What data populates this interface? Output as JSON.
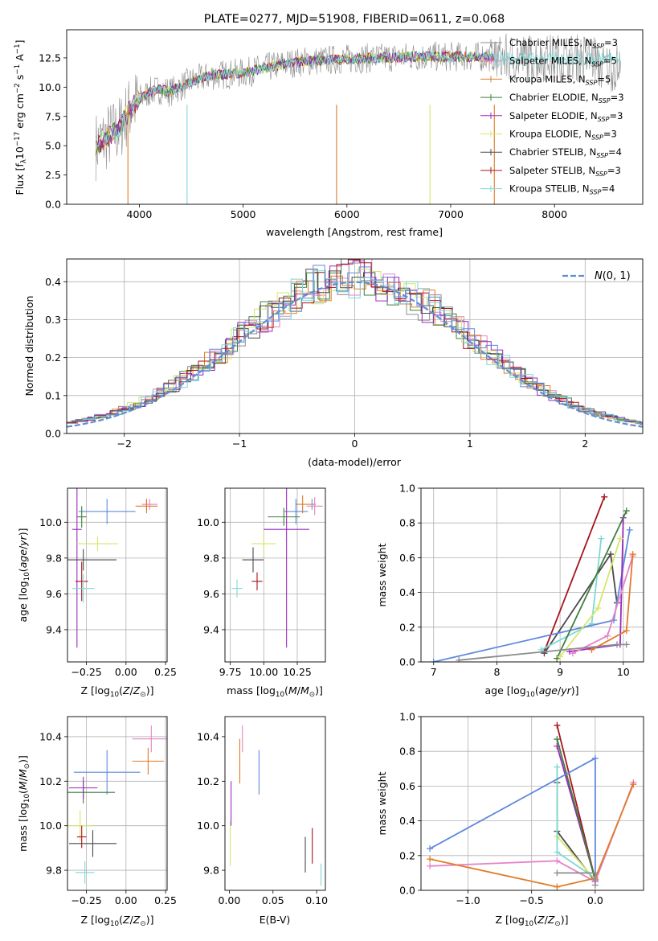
{
  "colors": {
    "chabrier_miles": "#8c8c8c",
    "salpeter_miles": "#e683c8",
    "kroupa_miles": "#e07b28",
    "chabrier_elodie": "#3f7f3f",
    "salpeter_elodie": "#9a2bbd",
    "kroupa_elodie": "#d6e66b",
    "chabrier_stelib": "#4a4a4a",
    "salpeter_stelib": "#a8141d",
    "kroupa_stelib": "#7fd8d8",
    "blue_series": "#5f88dd",
    "gaussian": "#5f8fd6",
    "grid": "#b0b0b0"
  },
  "chart_data": [
    {
      "id": "spectrum",
      "type": "line",
      "title": "PLATE=0277, MJD=51908, FIBERID=0611, z=0.068",
      "xlabel": "wavelength [Angstrom, rest frame]",
      "ylabel": "Flux [f_λ10^−17 erg cm^−2 s^−1 A^−1]",
      "xlim": [
        3300,
        8850
      ],
      "ylim": [
        0,
        14.9
      ],
      "xticks": [
        4000,
        5000,
        6000,
        7000,
        8000
      ],
      "yticks": [
        0.0,
        2.5,
        5.0,
        7.5,
        10.0,
        12.5
      ],
      "legend_position": "right",
      "legend": [
        {
          "name": "Chabrier MILES",
          "nssp": "3",
          "color_key": "chabrier_miles"
        },
        {
          "name": "Salpeter MILES",
          "nssp": "5",
          "color_key": "salpeter_miles"
        },
        {
          "name": "Kroupa MILES",
          "nssp": "5",
          "color_key": "kroupa_miles"
        },
        {
          "name": "Chabrier ELODIE",
          "nssp": "3",
          "color_key": "chabrier_elodie"
        },
        {
          "name": "Salpeter ELODIE",
          "nssp": "3",
          "color_key": "salpeter_elodie"
        },
        {
          "name": "Kroupa ELODIE",
          "nssp": "3",
          "color_key": "kroupa_elodie"
        },
        {
          "name": "Chabrier STELIB",
          "nssp": "4",
          "color_key": "chabrier_stelib"
        },
        {
          "name": "Salpeter STELIB",
          "nssp": "3",
          "color_key": "salpeter_stelib"
        },
        {
          "name": "Kroupa STELIB",
          "nssp": "4",
          "color_key": "kroupa_stelib"
        }
      ],
      "continuum_approx": [
        {
          "x": 3580,
          "y": 5.0
        },
        {
          "x": 3700,
          "y": 5.8
        },
        {
          "x": 3800,
          "y": 6.3
        },
        {
          "x": 3900,
          "y": 8.0
        },
        {
          "x": 4000,
          "y": 9.0
        },
        {
          "x": 4100,
          "y": 9.6
        },
        {
          "x": 4200,
          "y": 9.8
        },
        {
          "x": 4300,
          "y": 9.6
        },
        {
          "x": 4500,
          "y": 10.5
        },
        {
          "x": 4700,
          "y": 11.0
        },
        {
          "x": 5000,
          "y": 11.2
        },
        {
          "x": 5200,
          "y": 11.6
        },
        {
          "x": 5400,
          "y": 12.0
        },
        {
          "x": 5600,
          "y": 12.2
        },
        {
          "x": 5800,
          "y": 12.3
        },
        {
          "x": 6000,
          "y": 12.4
        },
        {
          "x": 6300,
          "y": 12.5
        },
        {
          "x": 6600,
          "y": 12.6
        },
        {
          "x": 6900,
          "y": 12.6
        },
        {
          "x": 7200,
          "y": 12.6
        },
        {
          "x": 7420,
          "y": 12.6
        }
      ]
    },
    {
      "id": "residuals",
      "type": "bar",
      "xlabel": "(data-model)/error",
      "ylabel": "Normed distribution",
      "xlim": [
        -2.5,
        2.5
      ],
      "ylim": [
        0,
        0.46
      ],
      "xticks": [
        -2,
        -1,
        0,
        1,
        2
      ],
      "yticks": [
        0.0,
        0.1,
        0.2,
        0.3,
        0.4
      ],
      "legend_position": "top-right",
      "legend": [
        {
          "name": "N(0,1)",
          "color_key": "gaussian"
        }
      ]
    },
    {
      "id": "z_age",
      "type": "scatter",
      "xlabel": "Z [log10(Z/Z⊙)]",
      "ylabel": "age [log10(age/yr)]",
      "xlim": [
        -0.37,
        0.26
      ],
      "ylim": [
        9.22,
        10.19
      ],
      "xticks": [
        -0.25,
        0.0,
        0.25
      ],
      "yticks": [
        9.4,
        9.6,
        9.8,
        10.0
      ],
      "points": [
        {
          "x": 0.13,
          "y": 10.1,
          "xerr": 0.03,
          "yerr": 0.03,
          "color_key": "chabrier_miles"
        },
        {
          "x": 0.15,
          "y": 10.1,
          "xerr": 0.05,
          "yerr": 0.03,
          "color_key": "salpeter_miles"
        },
        {
          "x": 0.13,
          "y": 10.09,
          "xerr": 0.07,
          "yerr": 0.04,
          "color_key": "kroupa_miles"
        },
        {
          "x": -0.12,
          "y": 10.06,
          "xerr": 0.18,
          "yerr": 0.07,
          "color_key": "blue_series"
        },
        {
          "x": -0.28,
          "y": 10.03,
          "xerr": 0.03,
          "yerr": 0.06,
          "color_key": "chabrier_elodie"
        },
        {
          "x": -0.31,
          "y": 9.96,
          "xerr": 0.03,
          "yerr": 0.66,
          "color_key": "salpeter_elodie"
        },
        {
          "x": -0.18,
          "y": 9.88,
          "xerr": 0.13,
          "yerr": 0.04,
          "color_key": "kroupa_elodie"
        },
        {
          "x": -0.27,
          "y": 9.79,
          "xerr": 0.21,
          "yerr": 0.06,
          "color_key": "chabrier_stelib"
        },
        {
          "x": -0.28,
          "y": 9.67,
          "xerr": 0.04,
          "yerr": 0.11,
          "color_key": "salpeter_stelib"
        },
        {
          "x": -0.27,
          "y": 9.63,
          "xerr": 0.07,
          "yerr": 0.08,
          "color_key": "kroupa_stelib"
        }
      ]
    },
    {
      "id": "mass_age",
      "type": "scatter",
      "xlabel": "mass [log10(M/M⊙)]",
      "ylabel": "",
      "xlim": [
        9.71,
        10.46
      ],
      "ylim": [
        9.22,
        10.19
      ],
      "xticks": [
        9.75,
        10.0,
        10.25
      ],
      "yticks": [
        9.4,
        9.6,
        9.8,
        10.0
      ],
      "points": [
        {
          "x": 10.36,
          "y": 10.1,
          "xerr": 0.03,
          "yerr": 0.03,
          "color_key": "chabrier_miles"
        },
        {
          "x": 10.38,
          "y": 10.09,
          "xerr": 0.06,
          "yerr": 0.05,
          "color_key": "salpeter_miles"
        },
        {
          "x": 10.29,
          "y": 10.1,
          "xerr": 0.05,
          "yerr": 0.05,
          "color_key": "kroupa_miles"
        },
        {
          "x": 10.24,
          "y": 10.06,
          "xerr": 0.09,
          "yerr": 0.07,
          "color_key": "blue_series"
        },
        {
          "x": 10.15,
          "y": 10.03,
          "xerr": 0.12,
          "yerr": 0.05,
          "color_key": "chabrier_elodie"
        },
        {
          "x": 10.17,
          "y": 9.96,
          "xerr": 0.17,
          "yerr": 0.66,
          "color_key": "salpeter_elodie"
        },
        {
          "x": 10.0,
          "y": 9.88,
          "xerr": 0.09,
          "yerr": 0.07,
          "color_key": "kroupa_elodie"
        },
        {
          "x": 9.92,
          "y": 9.79,
          "xerr": 0.08,
          "yerr": 0.07,
          "color_key": "chabrier_stelib"
        },
        {
          "x": 9.95,
          "y": 9.67,
          "xerr": 0.04,
          "yerr": 0.05,
          "color_key": "salpeter_stelib"
        },
        {
          "x": 9.8,
          "y": 9.63,
          "xerr": 0.04,
          "yerr": 0.05,
          "color_key": "kroupa_stelib"
        }
      ]
    },
    {
      "id": "age_weight",
      "type": "line",
      "xlabel": "age [log10(age/yr)]",
      "ylabel": "mass weight",
      "xlim": [
        6.8,
        10.32
      ],
      "ylim": [
        0,
        1.0
      ],
      "xticks": [
        7,
        8,
        9,
        10
      ],
      "yticks": [
        0.0,
        0.2,
        0.4,
        0.6,
        0.8,
        1.0
      ],
      "series": [
        {
          "color_key": "salpeter_stelib",
          "x": [
            8.75,
            9.7
          ],
          "y": [
            0.06,
            0.95
          ]
        },
        {
          "color_key": "chabrier_stelib",
          "x": [
            8.75,
            9.8,
            9.9
          ],
          "y": [
            0.05,
            0.62,
            0.34
          ]
        },
        {
          "color_key": "kroupa_stelib",
          "x": [
            8.7,
            9.5,
            9.65
          ],
          "y": [
            0.07,
            0.22,
            0.71
          ]
        },
        {
          "color_key": "blue_series",
          "x": [
            7.0,
            9.85,
            10.1
          ],
          "y": [
            0.0,
            0.24,
            0.76
          ]
        },
        {
          "color_key": "salpeter_elodie",
          "x": [
            9.15,
            9.95,
            10.0
          ],
          "y": [
            0.06,
            0.1,
            0.83
          ]
        },
        {
          "color_key": "chabrier_elodie",
          "x": [
            8.95,
            10.05
          ],
          "y": [
            0.02,
            0.87
          ]
        },
        {
          "color_key": "kroupa_elodie",
          "x": [
            9.0,
            9.6,
            9.95
          ],
          "y": [
            0.03,
            0.31,
            0.71
          ]
        },
        {
          "color_key": "salpeter_miles",
          "x": [
            9.2,
            9.75,
            10.15
          ],
          "y": [
            0.05,
            0.15,
            0.61
          ]
        },
        {
          "color_key": "kroupa_miles",
          "x": [
            9.5,
            10.05,
            10.15
          ],
          "y": [
            0.07,
            0.18,
            0.62
          ]
        },
        {
          "color_key": "chabrier_miles",
          "x": [
            7.4,
            9.9,
            10.05
          ],
          "y": [
            0.01,
            0.1,
            0.1
          ]
        }
      ]
    },
    {
      "id": "z_mass",
      "type": "scatter",
      "xlabel": "Z [log10(Z/Z⊙)]",
      "ylabel": "mass [log10(M/M⊙)]",
      "xlim": [
        -0.37,
        0.26
      ],
      "ylim": [
        9.71,
        10.49
      ],
      "xticks": [
        -0.25,
        0.0,
        0.25
      ],
      "yticks": [
        9.8,
        10.0,
        10.2,
        10.4
      ],
      "points": [
        {
          "x": 0.16,
          "y": 10.39,
          "xerr": 0.12,
          "yerr": 0.06,
          "color_key": "salpeter_miles"
        },
        {
          "x": 0.14,
          "y": 10.29,
          "xerr": 0.1,
          "yerr": 0.06,
          "color_key": "kroupa_miles"
        },
        {
          "x": -0.12,
          "y": 10.24,
          "xerr": 0.21,
          "yerr": 0.1,
          "color_key": "blue_series"
        },
        {
          "x": -0.27,
          "y": 10.15,
          "xerr": 0.2,
          "yerr": 0.05,
          "color_key": "chabrier_elodie"
        },
        {
          "x": -0.27,
          "y": 10.17,
          "xerr": 0.09,
          "yerr": 0.05,
          "color_key": "salpeter_elodie"
        },
        {
          "x": -0.29,
          "y": 10.0,
          "xerr": 0.08,
          "yerr": 0.07,
          "color_key": "kroupa_elodie"
        },
        {
          "x": -0.21,
          "y": 9.92,
          "xerr": 0.15,
          "yerr": 0.06,
          "color_key": "chabrier_stelib"
        },
        {
          "x": -0.28,
          "y": 9.95,
          "xerr": 0.03,
          "yerr": 0.05,
          "color_key": "salpeter_stelib"
        },
        {
          "x": -0.26,
          "y": 9.79,
          "xerr": 0.06,
          "yerr": 0.05,
          "color_key": "kroupa_stelib"
        }
      ]
    },
    {
      "id": "ebv_mass",
      "type": "scatter",
      "xlabel": "E(B-V)",
      "ylabel": "",
      "xlim": [
        -0.005,
        0.11
      ],
      "ylim": [
        9.71,
        10.49
      ],
      "xticks": [
        0.0,
        0.05,
        0.1
      ],
      "yticks": [
        9.8,
        10.0,
        10.2,
        10.4
      ],
      "points": [
        {
          "x": 0.015,
          "y": 10.39,
          "yerr": 0.06,
          "color_key": "salpeter_miles"
        },
        {
          "x": 0.012,
          "y": 10.29,
          "yerr": 0.1,
          "color_key": "kroupa_miles"
        },
        {
          "x": 0.034,
          "y": 10.24,
          "yerr": 0.1,
          "color_key": "blue_series"
        },
        {
          "x": 0.002,
          "y": 10.1,
          "yerr": 0.1,
          "color_key": "salpeter_elodie"
        },
        {
          "x": 0.001,
          "y": 9.92,
          "yerr": 0.1,
          "color_key": "kroupa_elodie"
        },
        {
          "x": 0.087,
          "y": 9.87,
          "yerr": 0.08,
          "color_key": "chabrier_stelib"
        },
        {
          "x": 0.095,
          "y": 9.91,
          "yerr": 0.08,
          "color_key": "salpeter_stelib"
        },
        {
          "x": 0.105,
          "y": 9.78,
          "yerr": 0.05,
          "color_key": "kroupa_stelib"
        }
      ]
    },
    {
      "id": "z_weight",
      "type": "line",
      "xlabel": "Z [log10(Z/Z⊙)]",
      "ylabel": "mass weight",
      "xlim": [
        -1.37,
        0.38
      ],
      "ylim": [
        0,
        1.0
      ],
      "xticks": [
        -1.0,
        -0.5,
        0.0
      ],
      "yticks": [
        0.0,
        0.2,
        0.4,
        0.6,
        0.8,
        1.0
      ],
      "series": [
        {
          "color_key": "salpeter_stelib",
          "x": [
            -0.3,
            0.0
          ],
          "y": [
            0.95,
            0.06
          ]
        },
        {
          "color_key": "salpeter_elodie",
          "x": [
            -0.3,
            0.0
          ],
          "y": [
            0.83,
            0.06
          ]
        },
        {
          "color_key": "chabrier_elodie",
          "x": [
            -0.3,
            0.0
          ],
          "y": [
            0.87,
            0.06
          ]
        },
        {
          "color_key": "chabrier_stelib",
          "x": [
            -0.3,
            -0.3,
            0.0
          ],
          "y": [
            0.62,
            0.34,
            0.05
          ]
        },
        {
          "color_key": "kroupa_elodie",
          "x": [
            -0.3,
            -0.3,
            0.0
          ],
          "y": [
            0.71,
            0.31,
            0.06
          ]
        },
        {
          "color_key": "kroupa_stelib",
          "x": [
            -0.3,
            -0.3,
            0.0
          ],
          "y": [
            0.71,
            0.22,
            0.07
          ]
        },
        {
          "color_key": "blue_series",
          "x": [
            -1.3,
            0.0,
            0.0
          ],
          "y": [
            0.24,
            0.76,
            0.06
          ]
        },
        {
          "color_key": "salpeter_miles",
          "x": [
            -1.3,
            -0.3,
            0.0,
            0.3
          ],
          "y": [
            0.14,
            0.17,
            0.05,
            0.62
          ]
        },
        {
          "color_key": "kroupa_miles",
          "x": [
            -1.3,
            -0.3,
            0.0,
            0.3
          ],
          "y": [
            0.18,
            0.02,
            0.07,
            0.61
          ]
        },
        {
          "color_key": "chabrier_miles",
          "x": [
            -0.3,
            0.0,
            0.0
          ],
          "y": [
            0.1,
            0.1,
            0.03
          ]
        }
      ]
    }
  ]
}
